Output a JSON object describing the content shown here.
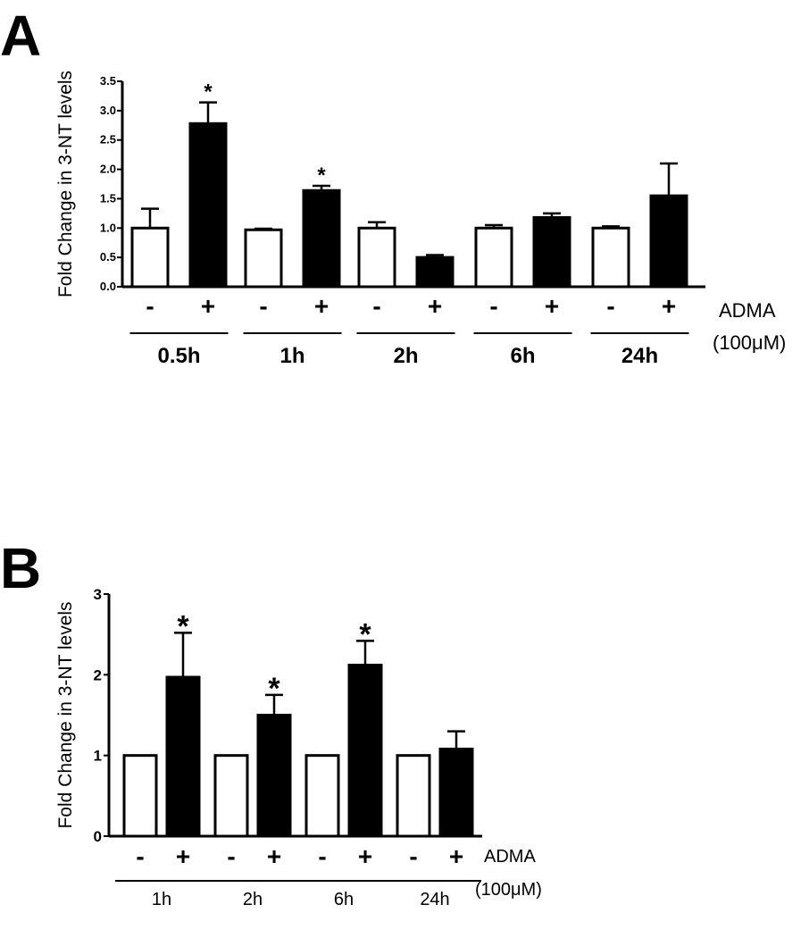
{
  "chart_data": [
    {
      "panel": "A",
      "type": "bar",
      "ylabel": "Fold Change in 3-NT levels",
      "ylim": [
        0,
        3.5
      ],
      "yticks": [
        "0.0",
        "0.5",
        "1.0",
        "1.5",
        "2.0",
        "2.5",
        "3.0",
        "3.5"
      ],
      "groups": [
        "0.5h",
        "1h",
        "2h",
        "6h",
        "24h"
      ],
      "treatment_signs": [
        "-",
        "+"
      ],
      "treatment_label": "ADMA",
      "treatment_unit": "(100μM)",
      "series": [
        {
          "treatment": "-",
          "fill": "#ffffff",
          "values": [
            1.0,
            0.97,
            1.0,
            1.0,
            1.0
          ],
          "errors": [
            0.33,
            0.02,
            0.1,
            0.05,
            0.03
          ],
          "significant": [
            false,
            false,
            false,
            false,
            false
          ]
        },
        {
          "treatment": "+",
          "fill": "#000000",
          "values": [
            2.78,
            1.64,
            0.5,
            1.18,
            1.55
          ],
          "errors": [
            0.36,
            0.08,
            0.04,
            0.07,
            0.55
          ],
          "significant": [
            true,
            true,
            false,
            false,
            false
          ]
        }
      ],
      "significance_marker": "*"
    },
    {
      "panel": "B",
      "type": "bar",
      "ylabel": "Fold Change in 3-NT levels",
      "ylim": [
        0,
        3
      ],
      "yticks": [
        "0",
        "1",
        "2",
        "3"
      ],
      "groups": [
        "1h",
        "2h",
        "6h",
        "24h"
      ],
      "treatment_signs": [
        "-",
        "+"
      ],
      "treatment_label": "ADMA",
      "treatment_unit": "(100μM)",
      "series": [
        {
          "treatment": "-",
          "fill": "#ffffff",
          "values": [
            1.0,
            1.0,
            1.0,
            1.0
          ],
          "errors": [
            0,
            0,
            0,
            0
          ],
          "significant": [
            false,
            false,
            false,
            false
          ]
        },
        {
          "treatment": "+",
          "fill": "#000000",
          "values": [
            1.97,
            1.5,
            2.12,
            1.08
          ],
          "errors": [
            0.55,
            0.25,
            0.3,
            0.22
          ],
          "significant": [
            true,
            true,
            true,
            false
          ]
        }
      ],
      "significance_marker": "*"
    }
  ]
}
